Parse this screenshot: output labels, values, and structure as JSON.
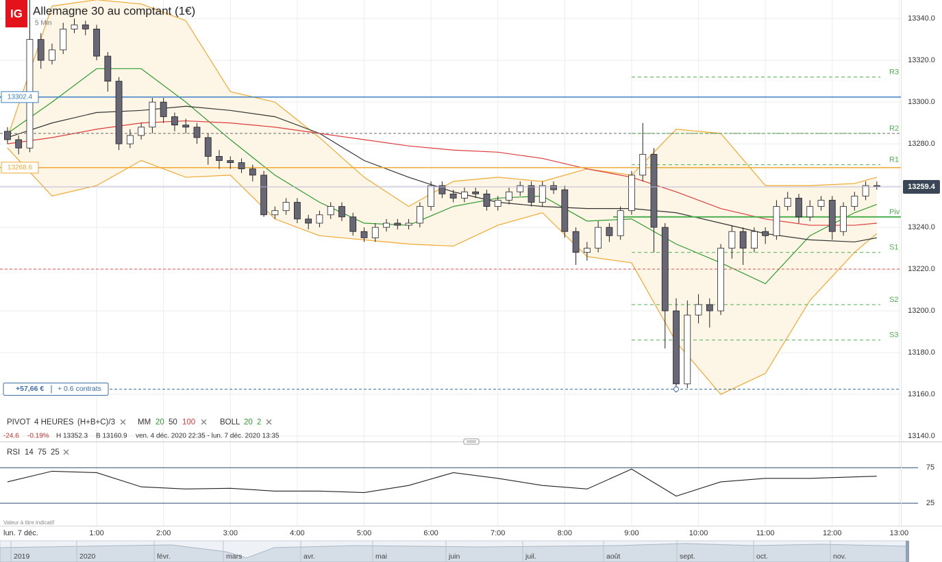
{
  "header": {
    "logo": "IG",
    "title": "Allemagne 30 au comptant (1€)",
    "interval": "5 Min"
  },
  "indicators": {
    "pivot": [
      "PIVOT",
      "4 HEURES",
      "(H+B+C)/3"
    ],
    "mm": [
      "MM",
      "20",
      "50",
      "100"
    ],
    "boll": [
      "BOLL",
      "20",
      "2"
    ],
    "rsi": [
      "RSI",
      "14",
      "75",
      "25"
    ]
  },
  "stats": {
    "change": "-24.6",
    "change_pct": "-0.19%",
    "high": "H 13352.3",
    "low": "B 13160.9",
    "range": "ven. 4 déc. 2020 22:35 - lun. 7 déc. 2020 13:35"
  },
  "note": "Valeur à titre indicatif",
  "day_label": "lun. 7 déc.",
  "navigator": [
    "2019",
    "2020",
    "févr.",
    "mars",
    "avr.",
    "mai",
    "juin",
    "juil.",
    "août",
    "sept.",
    "oct.",
    "nov."
  ],
  "chart_data": [
    {
      "type": "candlestick",
      "x": [
        -20,
        -10,
        0,
        10,
        20,
        30,
        40,
        50,
        60,
        70,
        80,
        90,
        100,
        110,
        120,
        130,
        140,
        150,
        160,
        170,
        180,
        190,
        200,
        210,
        220,
        230,
        240,
        250,
        260,
        270,
        280,
        290,
        300,
        310,
        320,
        330,
        340,
        350,
        360,
        370,
        380,
        390,
        400,
        410,
        420,
        430,
        440,
        450,
        460,
        470,
        480,
        490,
        500,
        510,
        520,
        530,
        540,
        550,
        560,
        570,
        580,
        590,
        600,
        610,
        620,
        630,
        640,
        650,
        660,
        670,
        680,
        690,
        700,
        710,
        720,
        730,
        740,
        750,
        760
      ],
      "open": [
        13286,
        13282,
        13278,
        13330,
        13320,
        13325,
        13335,
        13337,
        13335,
        13322,
        13310,
        13280,
        13284,
        13288,
        13300,
        13293,
        13289,
        13288,
        13283,
        13274,
        13272,
        13271,
        13268,
        13265,
        13246,
        13248,
        13252,
        13244,
        13242,
        13246,
        13250,
        13245,
        13238,
        13235,
        13240,
        13242,
        13241,
        13242,
        13250,
        13260,
        13256,
        13254,
        13257,
        13256,
        13250,
        13253,
        13257,
        13260,
        13252,
        13260,
        13258,
        13238,
        13228,
        13230,
        13240,
        13236,
        13248,
        13265,
        13275,
        13240,
        13200,
        13165,
        13198,
        13203,
        13200,
        13230,
        13238,
        13230,
        13238,
        13236,
        13250,
        13254,
        13245,
        13250,
        13253,
        13238,
        13250,
        13255,
        13260
      ],
      "high": [
        13288,
        13284,
        13352,
        13333,
        13328,
        13338,
        13340,
        13339,
        13337,
        13324,
        13312,
        13287,
        13290,
        13302,
        13302,
        13295,
        13292,
        13290,
        13285,
        13277,
        13274,
        13273,
        13270,
        13267,
        13250,
        13254,
        13254,
        13246,
        13248,
        13252,
        13252,
        13247,
        13240,
        13242,
        13244,
        13244,
        13244,
        13252,
        13262,
        13262,
        13258,
        13259,
        13259,
        13258,
        13255,
        13259,
        13262,
        13262,
        13262,
        13262,
        13260,
        13240,
        13233,
        13243,
        13242,
        13250,
        13267,
        13290,
        13278,
        13242,
        13206,
        13205,
        13208,
        13206,
        13232,
        13241,
        13240,
        13240,
        13240,
        13253,
        13257,
        13256,
        13253,
        13255,
        13255,
        13252,
        13257,
        13262,
        13262
      ],
      "low": [
        13280,
        13275,
        13276,
        13316,
        13318,
        13323,
        13333,
        13332,
        13320,
        13305,
        13277,
        13278,
        13282,
        13285,
        13290,
        13286,
        13285,
        13280,
        13270,
        13268,
        13268,
        13266,
        13262,
        13245,
        13244,
        13246,
        13242,
        13239,
        13240,
        13244,
        13243,
        13236,
        13233,
        13233,
        13238,
        13239,
        13239,
        13240,
        13248,
        13254,
        13252,
        13252,
        13254,
        13248,
        13248,
        13251,
        13255,
        13250,
        13250,
        13256,
        13235,
        13222,
        13224,
        13228,
        13233,
        13234,
        13246,
        13262,
        13228,
        13182,
        13160.9,
        13163,
        13194,
        13192,
        13198,
        13225,
        13222,
        13228,
        13232,
        13234,
        13248,
        13242,
        13243,
        13248,
        13234,
        13236,
        13248,
        13253,
        13258
      ],
      "close": [
        13282,
        13278,
        13330,
        13320,
        13325,
        13335,
        13337,
        13335,
        13322,
        13310,
        13280,
        13284,
        13288,
        13300,
        13293,
        13289,
        13288,
        13283,
        13274,
        13272,
        13271,
        13268,
        13265,
        13246,
        13248,
        13252,
        13244,
        13242,
        13246,
        13250,
        13245,
        13238,
        13235,
        13240,
        13242,
        13241,
        13242,
        13250,
        13260,
        13256,
        13254,
        13257,
        13256,
        13250,
        13253,
        13257,
        13260,
        13252,
        13260,
        13258,
        13238,
        13228,
        13230,
        13240,
        13236,
        13248,
        13265,
        13275,
        13240,
        13200,
        13165,
        13198,
        13203,
        13200,
        13230,
        13238,
        13230,
        13238,
        13236,
        13250,
        13254,
        13245,
        13250,
        13253,
        13238,
        13250,
        13255,
        13260,
        13259.4
      ],
      "up_color": "#ffffff",
      "down_color": "#676775",
      "series": [
        {
          "color": "#2e9a2e",
          "x": [
            -20,
            20,
            60,
            100,
            140,
            180,
            220,
            260,
            300,
            340,
            380,
            420,
            460,
            500,
            540,
            580,
            620,
            660,
            700,
            740,
            760
          ],
          "values": [
            13285,
            13300,
            13316,
            13316,
            13300,
            13282,
            13265,
            13252,
            13242,
            13241,
            13250,
            13254,
            13255,
            13243,
            13244,
            13232,
            13223,
            13213,
            13236,
            13247,
            13251
          ]
        },
        {
          "color": "#333333",
          "x": [
            -20,
            20,
            60,
            100,
            140,
            180,
            220,
            260,
            300,
            340,
            380,
            420,
            460,
            500,
            540,
            580,
            620,
            660,
            700,
            740,
            760
          ],
          "values": [
            13283,
            13290,
            13295,
            13296,
            13298,
            13296,
            13293,
            13285,
            13272,
            13264,
            13257,
            13252,
            13250,
            13249,
            13249,
            13247,
            13242,
            13237,
            13234,
            13233,
            13235
          ]
        },
        {
          "color": "#e03b3b",
          "x": [
            -20,
            20,
            60,
            100,
            140,
            180,
            220,
            260,
            300,
            340,
            380,
            420,
            460,
            500,
            540,
            580,
            620,
            660,
            700,
            740,
            760
          ],
          "values": [
            13280,
            13283,
            13287,
            13290,
            13291,
            13290,
            13288,
            13285,
            13282,
            13279,
            13277,
            13276,
            13273,
            13268,
            13264,
            13257,
            13249,
            13244,
            13241,
            13241,
            13242
          ]
        }
      ],
      "bollinger": {
        "color": "#f0a830",
        "fill": "#fdf6e6",
        "x": [
          -20,
          20,
          60,
          100,
          140,
          180,
          220,
          260,
          300,
          340,
          380,
          420,
          460,
          500,
          540,
          580,
          620,
          660,
          700,
          740,
          760
        ],
        "upper": [
          13283,
          13346,
          13349,
          13347,
          13339,
          13305,
          13300,
          13283,
          13264,
          13250,
          13262,
          13264,
          13262,
          13268,
          13265,
          13287,
          13285,
          13260,
          13260,
          13261,
          13264
        ],
        "lower": [
          13278,
          13255,
          13260,
          13272,
          13264,
          13265,
          13244,
          13236,
          13234,
          13232,
          13231,
          13241,
          13247,
          13226,
          13223,
          13185,
          13160,
          13170,
          13205,
          13228,
          13237
        ]
      },
      "lines": [
        {
          "value": 13302.4,
          "color": "#3c7fc4",
          "tag": true
        },
        {
          "value": 13268.6,
          "color": "#f0a830",
          "tag": true
        },
        {
          "value": 13285,
          "color": "#6a6a6a",
          "dash": true
        },
        {
          "value": 13220,
          "color": "#e05050",
          "dash": true
        }
      ],
      "last": {
        "value": 13259.4,
        "color": "#3a4556",
        "line_color": "#b9b6d6"
      },
      "pivot_color": "#4caf50",
      "pivots": [
        {
          "label": "R3",
          "value": 13312,
          "dash": true
        },
        {
          "label": "R2",
          "value": 13285,
          "dash": true
        },
        {
          "label": "R1",
          "value": 13270,
          "dash": true
        },
        {
          "label": "Piv",
          "value": 13245,
          "dash": false
        },
        {
          "label": "S1",
          "value": 13228,
          "dash": true
        },
        {
          "label": "S2",
          "value": 13203,
          "dash": true
        },
        {
          "label": "S3",
          "value": 13186,
          "dash": true
        }
      ],
      "position": {
        "value": 13162.5,
        "pnl": "+57,66 €",
        "size": "+ 0.6 contrats",
        "color": "#3c6ea8"
      },
      "xlim": [
        -26.7,
        781.6
      ],
      "xticks": [
        {
          "value": 60,
          "label": "1:00"
        },
        {
          "value": 120,
          "label": "2:00"
        },
        {
          "value": 180,
          "label": "3:00"
        },
        {
          "value": 240,
          "label": "4:00"
        },
        {
          "value": 300,
          "label": "5:00"
        },
        {
          "value": 360,
          "label": "6:00"
        },
        {
          "value": 420,
          "label": "7:00"
        },
        {
          "value": 480,
          "label": "8:00"
        },
        {
          "value": 540,
          "label": "9:00"
        },
        {
          "value": 600,
          "label": "10:00"
        },
        {
          "value": 660,
          "label": "11:00"
        },
        {
          "value": 720,
          "label": "12:00"
        },
        {
          "value": 780,
          "label": "13:00"
        }
      ],
      "ylim": [
        13137.4,
        13348.9
      ],
      "yticks": [
        {
          "value": 13340,
          "label": "13340.0"
        },
        {
          "value": 13320,
          "label": "13320.0"
        },
        {
          "value": 13300,
          "label": "13300.0"
        },
        {
          "value": 13280,
          "label": "13280.0"
        },
        {
          "value": 13260,
          "label": "13260.0"
        },
        {
          "value": 13240,
          "label": "13240.0"
        },
        {
          "value": 13220,
          "label": "13220.0"
        },
        {
          "value": 13200,
          "label": "13200.0"
        },
        {
          "value": 13180,
          "label": "13180.0"
        },
        {
          "value": 13160,
          "label": "13160.0"
        },
        {
          "value": 13140,
          "label": "13140.0"
        }
      ],
      "grid": true
    },
    {
      "type": "line",
      "color": "#222222",
      "level_color": "#2c4a6e",
      "x": [
        -20,
        20,
        60,
        100,
        140,
        180,
        220,
        260,
        300,
        340,
        380,
        420,
        460,
        500,
        540,
        580,
        620,
        660,
        700,
        740,
        760
      ],
      "values": [
        55,
        70,
        68,
        48,
        45,
        46,
        42,
        42,
        40,
        50,
        68,
        60,
        50,
        45,
        73,
        35,
        55,
        60,
        60,
        62,
        63
      ],
      "xlim": [
        -26.7,
        781.6
      ],
      "ylim": [
        1,
        107
      ],
      "yticks": [
        75,
        25
      ]
    }
  ]
}
